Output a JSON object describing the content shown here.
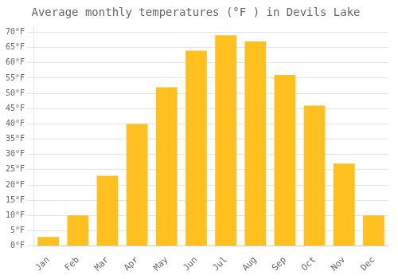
{
  "chart_data": {
    "type": "bar",
    "title": "Average monthly temperatures (°F ) in Devils Lake",
    "categories": [
      "Jan",
      "Feb",
      "Mar",
      "Apr",
      "May",
      "Jun",
      "Jul",
      "Aug",
      "Sep",
      "Oct",
      "Nov",
      "Dec"
    ],
    "values": [
      3,
      10,
      23,
      40,
      52,
      64,
      69,
      67,
      56,
      46,
      27,
      10
    ],
    "color": "#FFC020",
    "ylim": [
      0,
      72
    ],
    "yticks": [
      {
        "value": 0,
        "label": "0°F"
      },
      {
        "value": 5,
        "label": "5°F"
      },
      {
        "value": 10,
        "label": "10°F"
      },
      {
        "value": 15,
        "label": "15°F"
      },
      {
        "value": 20,
        "label": "20°F"
      },
      {
        "value": 25,
        "label": "25°F"
      },
      {
        "value": 30,
        "label": "30°F"
      },
      {
        "value": 35,
        "label": "35°F"
      },
      {
        "value": 40,
        "label": "40°F"
      },
      {
        "value": 45,
        "label": "45°F"
      },
      {
        "value": 50,
        "label": "50°F"
      },
      {
        "value": 55,
        "label": "55°F"
      },
      {
        "value": 60,
        "label": "60°F"
      },
      {
        "value": 65,
        "label": "65°F"
      },
      {
        "value": 70,
        "label": "70°F"
      }
    ],
    "grid": true
  }
}
